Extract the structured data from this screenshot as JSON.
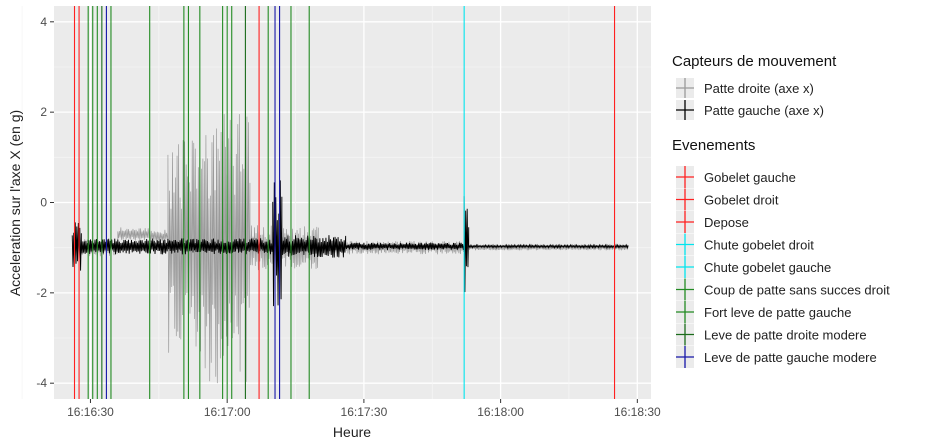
{
  "chart_data": {
    "type": "line",
    "title": "",
    "xlabel": "Heure",
    "ylabel": "Acceleration sur l'axe X (en g)",
    "xlim": [
      "16:16:22",
      "16:18:33"
    ],
    "ylim": [
      -4.35,
      4.35
    ],
    "x_ticks": [
      "16:16:30",
      "16:17:00",
      "16:17:30",
      "16:18:00",
      "16:18:30"
    ],
    "y_ticks": [
      -4,
      -2,
      0,
      2,
      4
    ],
    "grid": true,
    "legend_position": "right",
    "legend": {
      "sensors_title": "Capteurs de mouvement",
      "sensors": [
        {
          "label": "Patte droite (axe x)",
          "color": "#9a9a9a"
        },
        {
          "label": "Patte gauche (axe x)",
          "color": "#000000"
        }
      ],
      "events_title": "Evenements",
      "events": [
        {
          "label": "Gobelet gauche",
          "color": "#ff2020"
        },
        {
          "label": "Gobelet droit",
          "color": "#ff2020"
        },
        {
          "label": "Depose",
          "color": "#ff2020"
        },
        {
          "label": "Chute gobelet droit",
          "color": "#00e5ee"
        },
        {
          "label": "Chute gobelet gauche",
          "color": "#00e5ee"
        },
        {
          "label": "Coup de patte sans succes droit",
          "color": "#228b22"
        },
        {
          "label": "Fort leve de patte gauche",
          "color": "#228b22"
        },
        {
          "label": "Leve de patte droite modere",
          "color": "#1a6b1a"
        },
        {
          "label": "Leve de patte gauche modere",
          "color": "#1515a8"
        }
      ]
    },
    "series": [
      {
        "name": "Patte droite (axe x)",
        "color": "#9a9a9a",
        "x_range": [
          "16:16:26",
          "16:18:28"
        ],
        "baseline": -1.0,
        "segments": [
          {
            "start": "16:16:26",
            "end": "16:16:36",
            "amplitude": 0.2
          },
          {
            "start": "16:16:36",
            "end": "16:16:43",
            "amplitude": 0.15,
            "offset": 0.3
          },
          {
            "start": "16:16:43",
            "end": "16:16:47",
            "amplitude": 0.15,
            "offset": 0.25
          },
          {
            "start": "16:16:47",
            "end": "16:16:55",
            "amplitude": 2.4
          },
          {
            "start": "16:16:55",
            "end": "16:17:05",
            "amplitude": 3.0
          },
          {
            "start": "16:17:05",
            "end": "16:17:20",
            "amplitude": 0.5
          },
          {
            "start": "16:17:20",
            "end": "16:17:52",
            "amplitude": 0.15
          },
          {
            "start": "16:17:52",
            "end": "16:18:28",
            "amplitude": 0.06
          }
        ]
      },
      {
        "name": "Patte gauche (axe x)",
        "color": "#000000",
        "x_range": [
          "16:16:26",
          "16:18:28"
        ],
        "baseline": -0.97,
        "segments": [
          {
            "start": "16:16:26",
            "end": "16:16:28",
            "amplitude": 0.55
          },
          {
            "start": "16:16:28",
            "end": "16:17:10",
            "amplitude": 0.18
          },
          {
            "start": "16:17:10",
            "end": "16:17:12",
            "amplitude": 1.5
          },
          {
            "start": "16:17:12",
            "end": "16:17:26",
            "amplitude": 0.25
          },
          {
            "start": "16:17:26",
            "end": "16:17:52",
            "amplitude": 0.08
          },
          {
            "start": "16:17:52",
            "end": "16:17:53",
            "amplitude": 1.2
          },
          {
            "start": "16:17:53",
            "end": "16:18:28",
            "amplitude": 0.03
          }
        ]
      }
    ],
    "events": [
      {
        "time": "16:16:26.5",
        "event": "Gobelet gauche"
      },
      {
        "time": "16:16:27.5",
        "event": "Gobelet droit"
      },
      {
        "time": "16:16:29.5",
        "event": "Coup de patte sans succes droit"
      },
      {
        "time": "16:16:30.5",
        "event": "Coup de patte sans succes droit"
      },
      {
        "time": "16:16:31.5",
        "event": "Fort leve de patte gauche"
      },
      {
        "time": "16:16:32.5",
        "event": "Leve de patte droite modere"
      },
      {
        "time": "16:16:33.5",
        "event": "Leve de patte gauche modere"
      },
      {
        "time": "16:16:34.5",
        "event": "Coup de patte sans succes droit"
      },
      {
        "time": "16:16:43",
        "event": "Coup de patte sans succes droit"
      },
      {
        "time": "16:16:50.5",
        "event": "Coup de patte sans succes droit"
      },
      {
        "time": "16:16:51.5",
        "event": "Fort leve de patte gauche"
      },
      {
        "time": "16:16:54",
        "event": "Coup de patte sans succes droit"
      },
      {
        "time": "16:16:59",
        "event": "Coup de patte sans succes droit"
      },
      {
        "time": "16:17:00",
        "event": "Fort leve de patte gauche"
      },
      {
        "time": "16:17:01",
        "event": "Coup de patte sans succes droit"
      },
      {
        "time": "16:17:04",
        "event": "Leve de patte droite modere"
      },
      {
        "time": "16:17:07",
        "event": "Depose"
      },
      {
        "time": "16:17:09",
        "event": "Fort leve de patte gauche"
      },
      {
        "time": "16:17:10.5",
        "event": "Leve de patte gauche modere"
      },
      {
        "time": "16:17:11.5",
        "event": "Leve de patte gauche modere"
      },
      {
        "time": "16:17:14",
        "event": "Fort leve de patte gauche"
      },
      {
        "time": "16:17:18",
        "event": "Coup de patte sans succes droit"
      },
      {
        "time": "16:17:52",
        "event": "Chute gobelet droit"
      },
      {
        "time": "16:18:25",
        "event": "Gobelet gauche"
      }
    ]
  }
}
